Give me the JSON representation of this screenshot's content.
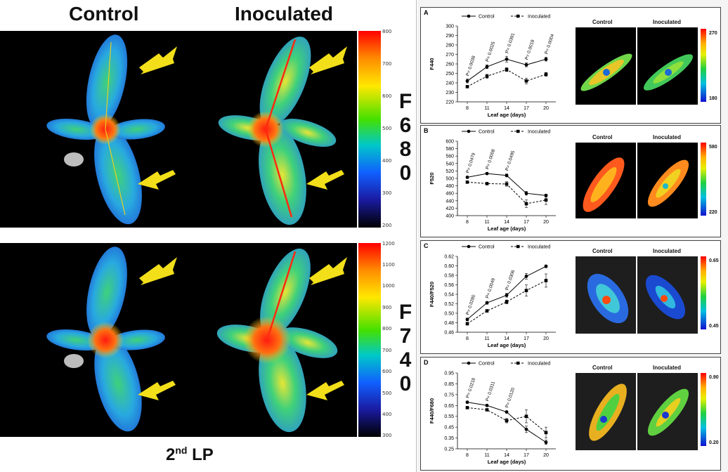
{
  "left": {
    "col_control": "Control",
    "col_inoculated": "Inoculated",
    "f680_letters": [
      "F",
      "6",
      "8",
      "0"
    ],
    "f740_letters": [
      "F",
      "7",
      "4",
      "0"
    ],
    "bottom_main": "2",
    "bottom_sup": "nd",
    "bottom_rest": " LP",
    "scale_top": [
      "800",
      "700",
      "600",
      "500",
      "400",
      "300",
      "200"
    ],
    "scale_bottom": [
      "1200",
      "1100",
      "1000",
      "900",
      "800",
      "700",
      "600",
      "500",
      "400",
      "300"
    ]
  },
  "colors": {
    "arrow": "#f2df1a",
    "marker": "#000000"
  },
  "panels": [
    {
      "label": "A",
      "ylabel": "F440",
      "xlabel": "Leaf age (days)",
      "thumb_control": "Control",
      "thumb_inoculated": "Inoculated",
      "cbar_top": "270",
      "cbar_bottom": "180",
      "legend": [
        "Control",
        "Inoculated"
      ]
    },
    {
      "label": "B",
      "ylabel": "F520",
      "xlabel": "Leaf age (days)",
      "thumb_control": "Control",
      "thumb_inoculated": "Inoculated",
      "cbar_top": "580",
      "cbar_bottom": "220",
      "legend": [
        "Control",
        "Inoculated"
      ]
    },
    {
      "label": "C",
      "ylabel": "F440/F520",
      "xlabel": "Leaf age (days)",
      "thumb_control": "Control",
      "thumb_inoculated": "Inoculated",
      "cbar_top": "0.65",
      "cbar_bottom": "0.45",
      "legend": [
        "Control",
        "Inoculated"
      ]
    },
    {
      "label": "D",
      "ylabel": "F440/F680",
      "xlabel": "Leaf age (days)",
      "thumb_control": "Control",
      "thumb_inoculated": "Inoculated",
      "cbar_top": "0.90",
      "cbar_bottom": "0.20",
      "legend": [
        "Control",
        "Inoculated"
      ]
    }
  ],
  "chart_data": [
    {
      "type": "line",
      "title": "",
      "xlabel": "Leaf age (days)",
      "ylabel": "F440",
      "x": [
        8,
        11,
        14,
        17,
        20
      ],
      "ylim": [
        220,
        300
      ],
      "yticks": [
        220,
        230,
        240,
        250,
        260,
        270,
        280,
        290,
        300
      ],
      "series": [
        {
          "name": "Control",
          "values": [
            242,
            257,
            265,
            259,
            265
          ],
          "err": [
            2,
            2,
            3,
            2,
            2
          ]
        },
        {
          "name": "Inoculated",
          "values": [
            236,
            247,
            254,
            242,
            249
          ],
          "err": [
            1,
            2,
            2,
            3,
            2
          ]
        }
      ],
      "annotations": [
        {
          "x": 8,
          "text": "P= 0.0038"
        },
        {
          "x": 11,
          "text": "P= 0.0025"
        },
        {
          "x": 14,
          "text": "P= 0.0391"
        },
        {
          "x": 17,
          "text": "P= 0.0018"
        },
        {
          "x": 20,
          "text": "P= 0.0004"
        }
      ]
    },
    {
      "type": "line",
      "title": "",
      "xlabel": "Leaf age (days)",
      "ylabel": "F520",
      "x": [
        8,
        11,
        14,
        17,
        20
      ],
      "ylim": [
        400,
        600
      ],
      "yticks": [
        400,
        420,
        440,
        460,
        480,
        500,
        520,
        540,
        560,
        580,
        600
      ],
      "series": [
        {
          "name": "Control",
          "values": [
            503,
            513,
            508,
            460,
            454
          ],
          "err": [
            3,
            3,
            4,
            5,
            4
          ]
        },
        {
          "name": "Inoculated",
          "values": [
            490,
            486,
            485,
            432,
            442
          ],
          "err": [
            3,
            3,
            6,
            10,
            12
          ]
        }
      ],
      "annotations": [
        {
          "x": 8,
          "text": "P= 0.0479"
        },
        {
          "x": 11,
          "text": "P= 0.0008"
        },
        {
          "x": 14,
          "text": "P= 0.0495"
        }
      ]
    },
    {
      "type": "line",
      "title": "",
      "xlabel": "Leaf age (days)",
      "ylabel": "F440/F520",
      "x": [
        8,
        11,
        14,
        17,
        20
      ],
      "ylim": [
        0.46,
        0.62
      ],
      "yticks": [
        0.46,
        0.48,
        0.5,
        0.52,
        0.54,
        0.56,
        0.58,
        0.6,
        0.62
      ],
      "series": [
        {
          "name": "Control",
          "values": [
            0.487,
            0.522,
            0.538,
            0.578,
            0.599
          ],
          "err": [
            0.003,
            0.003,
            0.004,
            0.006,
            0.003
          ]
        },
        {
          "name": "Inoculated",
          "values": [
            0.478,
            0.505,
            0.524,
            0.548,
            0.569
          ],
          "err": [
            0.003,
            0.003,
            0.004,
            0.012,
            0.014
          ]
        }
      ],
      "annotations": [
        {
          "x": 8,
          "text": "P= 0.0280"
        },
        {
          "x": 11,
          "text": "P= 0.0049"
        },
        {
          "x": 14,
          "text": "P= 0.0306"
        }
      ]
    },
    {
      "type": "line",
      "title": "",
      "xlabel": "Leaf age (days)",
      "ylabel": "F440/F680",
      "x": [
        8,
        11,
        14,
        17,
        20
      ],
      "ylim": [
        0.25,
        0.95
      ],
      "yticks": [
        0.25,
        0.35,
        0.45,
        0.55,
        0.65,
        0.75,
        0.85,
        0.95
      ],
      "series": [
        {
          "name": "Control",
          "values": [
            0.68,
            0.65,
            0.59,
            0.43,
            0.31
          ],
          "err": [
            0.01,
            0.01,
            0.01,
            0.03,
            0.02
          ]
        },
        {
          "name": "Inoculated",
          "values": [
            0.63,
            0.61,
            0.51,
            0.55,
            0.4
          ],
          "err": [
            0.01,
            0.01,
            0.02,
            0.06,
            0.05
          ]
        }
      ],
      "annotations": [
        {
          "x": 8,
          "text": "P= 0.0218"
        },
        {
          "x": 11,
          "text": "P= 0.0311"
        },
        {
          "x": 14,
          "text": "P= 0.0120"
        }
      ]
    }
  ]
}
